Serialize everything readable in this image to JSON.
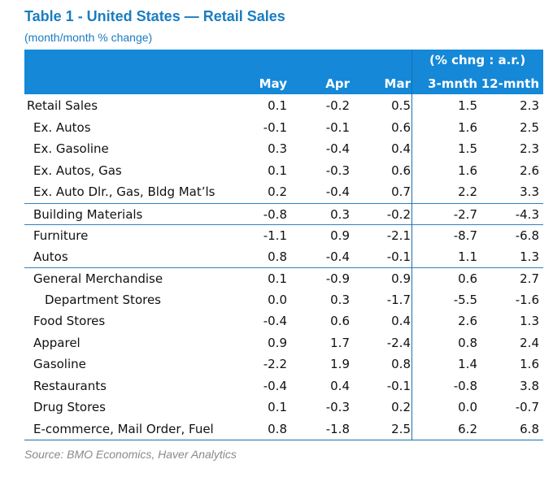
{
  "title": "Table 1 - United States — Retail Sales",
  "subtitle": "(month/month % change)",
  "header": {
    "group_label": "(% chng : a.r.)",
    "columns": [
      "May",
      "Apr",
      "Mar",
      "3-mnth",
      "12-mnth"
    ]
  },
  "rows": [
    {
      "label": "Retail Sales",
      "values": [
        "0.1",
        "-0.2",
        "0.5",
        "1.5",
        "2.3"
      ]
    },
    {
      "label": "Ex. Autos",
      "values": [
        "-0.1",
        "-0.1",
        "0.6",
        "1.6",
        "2.5"
      ]
    },
    {
      "label": "Ex. Gasoline",
      "values": [
        "0.3",
        "-0.4",
        "0.4",
        "1.5",
        "2.3"
      ]
    },
    {
      "label": "Ex. Autos, Gas",
      "values": [
        "0.1",
        "-0.3",
        "0.6",
        "1.6",
        "2.6"
      ]
    },
    {
      "label": "Ex. Auto Dlr., Gas, Bldg Mat’ls",
      "values": [
        "0.2",
        "-0.4",
        "0.7",
        "2.2",
        "3.3"
      ]
    },
    {
      "label": "Building Materials",
      "values": [
        "-0.8",
        "0.3",
        "-0.2",
        "-2.7",
        "-4.3"
      ]
    },
    {
      "label": "Furniture",
      "values": [
        "-1.1",
        "0.9",
        "-2.1",
        "-8.7",
        "-6.8"
      ]
    },
    {
      "label": "Autos",
      "values": [
        "0.8",
        "-0.4",
        "-0.1",
        "1.1",
        "1.3"
      ]
    },
    {
      "label": "General Merchandise",
      "values": [
        "0.1",
        "-0.9",
        "0.9",
        "0.6",
        "2.7"
      ]
    },
    {
      "label": "Department Stores",
      "values": [
        "0.0",
        "0.3",
        "-1.7",
        "-5.5",
        "-1.6"
      ]
    },
    {
      "label": "Food Stores",
      "values": [
        "-0.4",
        "0.6",
        "0.4",
        "2.6",
        "1.3"
      ]
    },
    {
      "label": "Apparel",
      "values": [
        "0.9",
        "1.7",
        "-2.4",
        "0.8",
        "2.4"
      ]
    },
    {
      "label": "Gasoline",
      "values": [
        "-2.2",
        "1.9",
        "0.8",
        "1.4",
        "1.6"
      ]
    },
    {
      "label": "Restaurants",
      "values": [
        "-0.4",
        "0.4",
        "-0.1",
        "-0.8",
        "3.8"
      ]
    },
    {
      "label": "Drug Stores",
      "values": [
        "0.1",
        "-0.3",
        "0.2",
        "0.0",
        "-0.7"
      ]
    },
    {
      "label": "E-commerce, Mail Order, Fuel",
      "values": [
        "0.8",
        "-1.8",
        "2.5",
        "6.2",
        "6.8"
      ]
    }
  ],
  "source": "Source: BMO Economics, Haver Analytics"
}
